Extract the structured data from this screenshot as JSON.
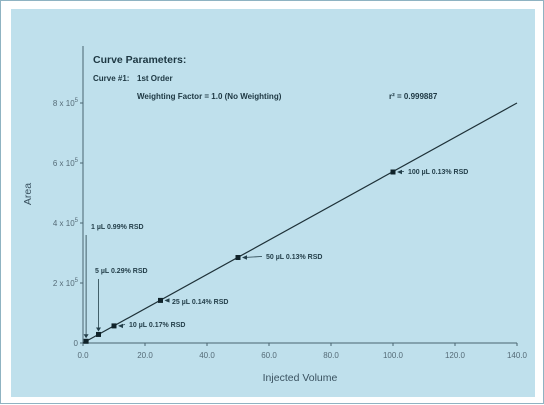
{
  "parameters": {
    "title": "Curve Parameters:",
    "curve_label": "Curve #1:",
    "curve_order": "1st Order",
    "weighting": "Weighting Factor = 1.0 (No Weighting)",
    "r2": "r² = 0.999887"
  },
  "chart_data": {
    "type": "scatter",
    "title": "",
    "xlabel": "Injected Volume",
    "ylabel": "Area",
    "xlim": [
      0,
      140
    ],
    "ylim": [
      0,
      800000
    ],
    "x_ticks": [
      "0.0",
      "20.0",
      "40.0",
      "60.0",
      "80.0",
      "100.0",
      "120.0",
      "140.0"
    ],
    "y_ticks": [
      {
        "value": 0,
        "base": "0",
        "exp": ""
      },
      {
        "value": 200000,
        "base": "2 x 10",
        "exp": "5"
      },
      {
        "value": 400000,
        "base": "4 x 10",
        "exp": "5"
      },
      {
        "value": 600000,
        "base": "6 x 10",
        "exp": "5"
      },
      {
        "value": 800000,
        "base": "8 x 10",
        "exp": "5"
      }
    ],
    "grid": false,
    "points": [
      {
        "x": 1,
        "y": 5700,
        "label": "1 µL 0.99% RSD"
      },
      {
        "x": 5,
        "y": 28500,
        "label": "5 µL 0.29% RSD"
      },
      {
        "x": 10,
        "y": 57000,
        "label": "10 µL 0.17% RSD"
      },
      {
        "x": 25,
        "y": 142000,
        "label": "25 µL 0.14% RSD"
      },
      {
        "x": 50,
        "y": 285000,
        "label": "50 µL 0.13% RSD"
      },
      {
        "x": 100,
        "y": 570000,
        "label": "100 µL 0.13% RSD"
      }
    ],
    "fit_line": {
      "x": [
        0,
        140
      ],
      "y": [
        0,
        800000
      ]
    }
  }
}
